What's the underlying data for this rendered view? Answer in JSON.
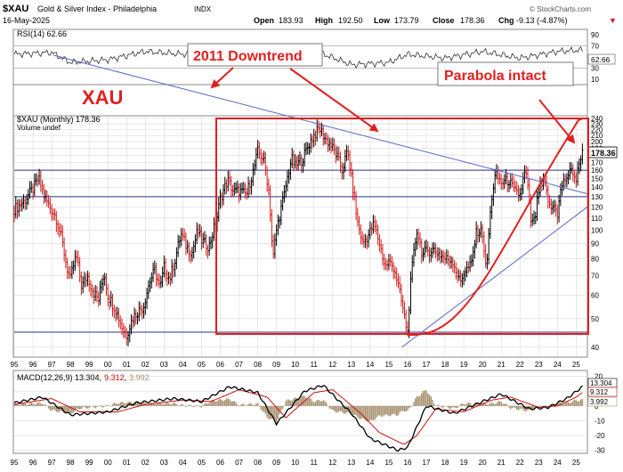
{
  "header": {
    "symbol": "$XAU",
    "name": "Gold & Silver Index - Philadelphia",
    "exchange": "INDX",
    "date": "16-May-2025",
    "open_label": "Open",
    "open": "183.93",
    "high_label": "High",
    "high": "192.50",
    "low_label": "Low",
    "low": "173.79",
    "close_label": "Close",
    "close": "178.36",
    "chg_label": "Chg",
    "chg": "-9.13 (-4.87%)",
    "chg_arrow": "▼",
    "watermark": "© StockCharts.com"
  },
  "rsi": {
    "label": "RSI(14) 62.66",
    "last_value": "62.66",
    "ticks": [
      "90",
      "70",
      "50",
      "30",
      "10"
    ]
  },
  "price": {
    "legend_price": "$XAU (Monthly) 178.36",
    "legend_volume": "Volume undef",
    "last_value": "178.36",
    "ticks": [
      "240",
      "230",
      "220",
      "210",
      "200",
      "190",
      "180",
      "170",
      "160",
      "150",
      "140",
      "130",
      "120",
      "110",
      "100",
      "90",
      "80",
      "70",
      "60",
      "50",
      "40"
    ]
  },
  "macd": {
    "label_prefix": "MACD(12,26,9) 13.304,",
    "value_signal": "9.312",
    "value_hist": "3.992",
    "sep": ",",
    "last_macd": "13.304",
    "last_signal": "9.312",
    "last_hist": "3.992",
    "ticks": [
      "20",
      "10",
      "0",
      "-10",
      "-20",
      "-30"
    ]
  },
  "x_axis": {
    "labels": [
      "95",
      "96",
      "97",
      "98",
      "99",
      "00",
      "01",
      "02",
      "03",
      "04",
      "05",
      "06",
      "07",
      "08",
      "09",
      "10",
      "11",
      "12",
      "13",
      "14",
      "15",
      "16",
      "17",
      "18",
      "19",
      "20",
      "21",
      "22",
      "23",
      "24",
      "25"
    ]
  },
  "annotations": {
    "xau": "XAU",
    "downtrend": "2011 Downtrend",
    "parabola": "Parabola intact"
  },
  "colors": {
    "annotation": "#e21f1f",
    "trendline": "#5a66c8",
    "hline": "#2a2f8e",
    "up_bar": "#000000",
    "down_bar": "#d11f1f",
    "panel_bg": "#ffffff",
    "grid": "#d9d9d9",
    "macd_line": "#000000",
    "signal_line": "#cc1111",
    "hist": "#a68f6d"
  },
  "chart_data": {
    "type": "line",
    "title": "$XAU Gold & Silver Index - Philadelphia (Monthly)",
    "x_range": [
      "1995",
      "2025"
    ],
    "y_scale": "log",
    "ylim": [
      37,
      245
    ],
    "series": [
      {
        "name": "$XAU (Monthly)",
        "points": [
          [
            1995.0,
            118
          ],
          [
            1995.5,
            125
          ],
          [
            1996.0,
            138
          ],
          [
            1996.3,
            150
          ],
          [
            1996.6,
            130
          ],
          [
            1996.9,
            120
          ],
          [
            1997.2,
            112
          ],
          [
            1997.5,
            95
          ],
          [
            1997.8,
            75
          ],
          [
            1998.0,
            68
          ],
          [
            1998.3,
            82
          ],
          [
            1998.6,
            64
          ],
          [
            1998.9,
            70
          ],
          [
            1999.2,
            62
          ],
          [
            1999.5,
            58
          ],
          [
            1999.8,
            72
          ],
          [
            2000.0,
            60
          ],
          [
            2000.4,
            54
          ],
          [
            2000.8,
            46
          ],
          [
            2001.0,
            44
          ],
          [
            2001.3,
            50
          ],
          [
            2001.6,
            53
          ],
          [
            2001.9,
            55
          ],
          [
            2002.2,
            66
          ],
          [
            2002.5,
            73
          ],
          [
            2002.8,
            63
          ],
          [
            2003.0,
            75
          ],
          [
            2003.3,
            68
          ],
          [
            2003.6,
            80
          ],
          [
            2003.9,
            97
          ],
          [
            2004.2,
            88
          ],
          [
            2004.5,
            84
          ],
          [
            2004.8,
            100
          ],
          [
            2005.0,
            92
          ],
          [
            2005.4,
            88
          ],
          [
            2005.8,
            108
          ],
          [
            2006.0,
            128
          ],
          [
            2006.4,
            148
          ],
          [
            2006.7,
            135
          ],
          [
            2007.0,
            136
          ],
          [
            2007.4,
            132
          ],
          [
            2007.8,
            162
          ],
          [
            2008.0,
            185
          ],
          [
            2008.3,
            175
          ],
          [
            2008.6,
            135
          ],
          [
            2008.8,
            78
          ],
          [
            2009.0,
            100
          ],
          [
            2009.4,
            130
          ],
          [
            2009.8,
            175
          ],
          [
            2010.0,
            165
          ],
          [
            2010.4,
            175
          ],
          [
            2010.8,
            200
          ],
          [
            2011.0,
            210
          ],
          [
            2011.3,
            222
          ],
          [
            2011.6,
            205
          ],
          [
            2011.9,
            195
          ],
          [
            2012.2,
            180
          ],
          [
            2012.5,
            160
          ],
          [
            2012.8,
            185
          ],
          [
            2013.0,
            150
          ],
          [
            2013.3,
            108
          ],
          [
            2013.6,
            90
          ],
          [
            2013.9,
            96
          ],
          [
            2014.2,
            105
          ],
          [
            2014.5,
            90
          ],
          [
            2014.8,
            75
          ],
          [
            2015.0,
            78
          ],
          [
            2015.3,
            74
          ],
          [
            2015.6,
            60
          ],
          [
            2015.9,
            48
          ],
          [
            2016.0,
            45
          ],
          [
            2016.2,
            70
          ],
          [
            2016.5,
            100
          ],
          [
            2016.8,
            82
          ],
          [
            2017.0,
            85
          ],
          [
            2017.4,
            86
          ],
          [
            2017.8,
            82
          ],
          [
            2018.0,
            80
          ],
          [
            2018.4,
            79
          ],
          [
            2018.8,
            66
          ],
          [
            2019.0,
            72
          ],
          [
            2019.4,
            76
          ],
          [
            2019.7,
            100
          ],
          [
            2020.0,
            98
          ],
          [
            2020.2,
            70
          ],
          [
            2020.5,
            130
          ],
          [
            2020.7,
            155
          ],
          [
            2021.0,
            145
          ],
          [
            2021.4,
            148
          ],
          [
            2021.7,
            135
          ],
          [
            2022.0,
            132
          ],
          [
            2022.3,
            160
          ],
          [
            2022.6,
            105
          ],
          [
            2022.8,
            108
          ],
          [
            2023.0,
            136
          ],
          [
            2023.3,
            145
          ],
          [
            2023.6,
            118
          ],
          [
            2023.9,
            122
          ],
          [
            2024.0,
            113
          ],
          [
            2024.2,
            140
          ],
          [
            2024.5,
            152
          ],
          [
            2024.8,
            160
          ],
          [
            2025.0,
            148
          ],
          [
            2025.2,
            172
          ],
          [
            2025.3,
            187
          ],
          [
            2025.37,
            178.36
          ]
        ]
      },
      {
        "name": "RSI(14)",
        "points": [
          [
            1995.0,
            55
          ],
          [
            1997.0,
            58
          ],
          [
            1998.0,
            40
          ],
          [
            2000.0,
            45
          ],
          [
            2002.0,
            60
          ],
          [
            2004.0,
            55
          ],
          [
            2006.0,
            66
          ],
          [
            2008.0,
            50
          ],
          [
            2009.0,
            42
          ],
          [
            2011.0,
            62
          ],
          [
            2013.0,
            36
          ],
          [
            2015.0,
            40
          ],
          [
            2016.0,
            55
          ],
          [
            2018.0,
            48
          ],
          [
            2020.0,
            60
          ],
          [
            2022.0,
            48
          ],
          [
            2024.0,
            60
          ],
          [
            2025.37,
            62.66
          ]
        ]
      },
      {
        "name": "MACD(12,26,9)",
        "points": [
          [
            1995.0,
            2
          ],
          [
            1996.5,
            6
          ],
          [
            1998.0,
            -6
          ],
          [
            2000.0,
            -4
          ],
          [
            2001.5,
            2
          ],
          [
            2003.5,
            5
          ],
          [
            2005.0,
            3
          ],
          [
            2006.5,
            13
          ],
          [
            2008.0,
            9
          ],
          [
            2009.0,
            -12
          ],
          [
            2010.5,
            10
          ],
          [
            2011.5,
            14
          ],
          [
            2013.0,
            -5
          ],
          [
            2014.0,
            -22
          ],
          [
            2015.5,
            -30
          ],
          [
            2016.0,
            -28
          ],
          [
            2017.0,
            0
          ],
          [
            2018.5,
            -5
          ],
          [
            2020.0,
            3
          ],
          [
            2021.0,
            8
          ],
          [
            2022.5,
            -2
          ],
          [
            2023.5,
            -1
          ],
          [
            2024.5,
            5
          ],
          [
            2025.37,
            13.304
          ]
        ]
      },
      {
        "name": "Signal",
        "points": [
          [
            1995.0,
            1
          ],
          [
            1997.0,
            5
          ],
          [
            1998.5,
            -4
          ],
          [
            2000.5,
            -4
          ],
          [
            2002.0,
            1
          ],
          [
            2004.0,
            4
          ],
          [
            2005.5,
            3
          ],
          [
            2007.0,
            11
          ],
          [
            2008.5,
            6
          ],
          [
            2009.5,
            -8
          ],
          [
            2011.0,
            9
          ],
          [
            2012.0,
            11
          ],
          [
            2013.5,
            -5
          ],
          [
            2014.5,
            -18
          ],
          [
            2015.8,
            -26
          ],
          [
            2016.5,
            -20
          ],
          [
            2017.5,
            -2
          ],
          [
            2019.0,
            -4
          ],
          [
            2020.5,
            4
          ],
          [
            2021.5,
            6
          ],
          [
            2023.0,
            -1
          ],
          [
            2024.0,
            0
          ],
          [
            2025.0,
            6
          ],
          [
            2025.37,
            9.312
          ]
        ]
      }
    ],
    "reference_lines": [
      {
        "type": "horizontal",
        "y": 160
      },
      {
        "type": "horizontal",
        "y": 130
      },
      {
        "type": "horizontal",
        "y": 45
      }
    ]
  }
}
